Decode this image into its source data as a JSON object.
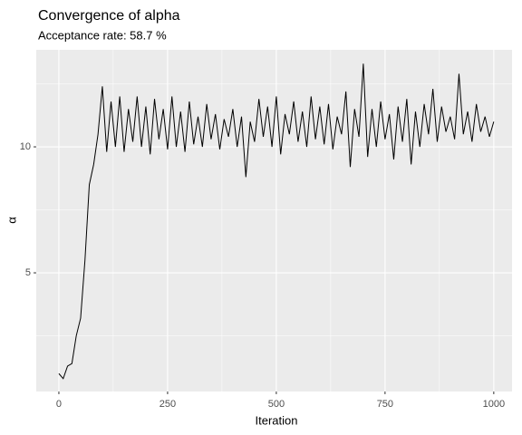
{
  "chart_data": {
    "type": "line",
    "title": "Convergence of alpha",
    "subtitle": "Acceptance rate: 58.7 %",
    "x_label": "Iteration",
    "y_label": "α",
    "x": [
      0,
      10,
      20,
      30,
      40,
      50,
      60,
      70,
      80,
      90,
      100,
      110,
      120,
      130,
      140,
      150,
      160,
      170,
      180,
      190,
      200,
      210,
      220,
      230,
      240,
      250,
      260,
      270,
      280,
      290,
      300,
      310,
      320,
      330,
      340,
      350,
      360,
      370,
      380,
      390,
      400,
      410,
      420,
      430,
      440,
      450,
      460,
      470,
      480,
      490,
      500,
      510,
      520,
      530,
      540,
      550,
      560,
      570,
      580,
      590,
      600,
      610,
      620,
      630,
      640,
      650,
      660,
      670,
      680,
      690,
      700,
      710,
      720,
      730,
      740,
      750,
      760,
      770,
      780,
      790,
      800,
      810,
      820,
      830,
      840,
      850,
      860,
      870,
      880,
      890,
      900,
      910,
      920,
      930,
      940,
      950,
      960,
      970,
      980,
      990,
      1000
    ],
    "series": [
      {
        "name": "alpha",
        "color": "#000000",
        "values": [
          1.0,
          0.8,
          1.3,
          1.4,
          2.5,
          3.2,
          5.5,
          8.5,
          9.3,
          10.5,
          12.4,
          9.8,
          11.8,
          10,
          12,
          9.8,
          11.5,
          10.2,
          12,
          10,
          11.6,
          9.7,
          11.9,
          10.3,
          11.5,
          9.9,
          12,
          10,
          11.4,
          9.8,
          11.8,
          10.1,
          11.2,
          10,
          11.7,
          10.3,
          11.3,
          9.9,
          11.1,
          10.4,
          11.5,
          10,
          11.2,
          8.8,
          11,
          10.2,
          11.9,
          10.4,
          11.6,
          10,
          12,
          9.7,
          11.3,
          10.5,
          11.8,
          10.2,
          11.4,
          10,
          12,
          10.3,
          11.6,
          10.1,
          11.7,
          9.9,
          11.2,
          10.5,
          12.2,
          9.2,
          11.5,
          10.4,
          13.3,
          9.6,
          11.5,
          10,
          11.8,
          10.3,
          11.3,
          9.5,
          11.6,
          10.2,
          11.9,
          9.3,
          11.4,
          10,
          11.7,
          10.5,
          12.3,
          10.2,
          11.6,
          10.6,
          11.2,
          10.3,
          12.9,
          10.5,
          11.4,
          10.2,
          11.7,
          10.6,
          11.2,
          10.4,
          11
        ]
      }
    ],
    "xlim": [
      -52,
      1042
    ],
    "ylim": [
      0.29,
      13.85
    ],
    "xticks": [
      0,
      250,
      500,
      750,
      1000
    ],
    "yticks": [
      5,
      10
    ],
    "minor_xticks": [
      125,
      375,
      625,
      875
    ],
    "minor_yticks": [
      2.5,
      7.5,
      12.5
    ],
    "grid": true
  }
}
